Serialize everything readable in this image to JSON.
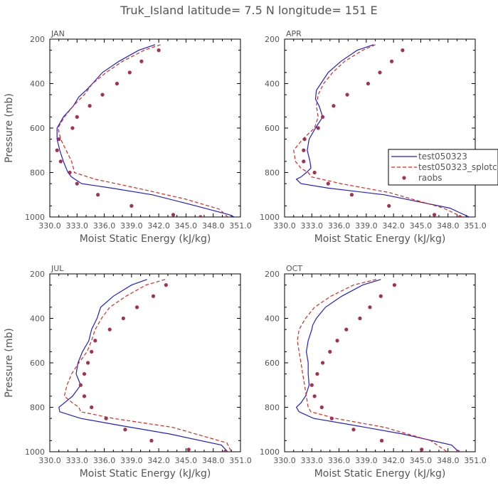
{
  "figure": {
    "title": "Truk_Island  latitude= 7.5 N longitude= 151 E"
  },
  "style": {
    "axis_color": "#000000",
    "label_color": "#555555",
    "model_color": "#1f1fd6",
    "splotch_color": "#e0261b",
    "raobs_color": "#a3324f"
  },
  "legend": {
    "placement": "right of APR panel",
    "entries": [
      "test050323",
      "test050323_splotch",
      "raobs"
    ]
  },
  "chart_data": [
    {
      "type": "line",
      "panel": "JAN",
      "xlabel": "Moist Static Energy (kJ/kg)",
      "ylabel": "Pressure (mb)",
      "xlim": [
        330.0,
        351.0
      ],
      "ylim": [
        200,
        1000
      ],
      "y_inverted": true,
      "xticks": [
        "330.0",
        "333.0",
        "336.0",
        "339.0",
        "342.0",
        "345.0",
        "348.0",
        "351.0"
      ],
      "yticks": [
        "200",
        "400",
        "600",
        "800",
        "1000"
      ],
      "series": [
        {
          "name": "test050323",
          "style": "solid",
          "x": [
            341.6,
            339.8,
            337.6,
            335.8,
            334.7,
            334.0,
            333.2,
            332.6,
            331.5,
            330.8,
            330.8,
            331.1,
            331.5,
            332.0,
            332.4,
            333.5,
            336.8,
            341.3,
            346.1,
            349.8,
            350.6
          ],
          "y": [
            225,
            250,
            300,
            350,
            400,
            430,
            460,
            500,
            550,
            600,
            650,
            700,
            750,
            800,
            820,
            850,
            870,
            900,
            950,
            990,
            1005
          ]
        },
        {
          "name": "test050323_splotch",
          "style": "dashed",
          "x": [
            342.2,
            340.4,
            338.0,
            336.2,
            334.7,
            333.8,
            332.6,
            331.6,
            330.9,
            331.2,
            331.8,
            332.4,
            332.6,
            332.7,
            335.0,
            339.6,
            345.0,
            348.7,
            349.6
          ],
          "y": [
            225,
            250,
            300,
            350,
            400,
            450,
            500,
            550,
            600,
            650,
            700,
            750,
            780,
            800,
            830,
            870,
            920,
            965,
            1000
          ]
        },
        {
          "name": "raobs",
          "style": "markers",
          "x": [
            342.0,
            340.1,
            338.8,
            337.4,
            335.8,
            334.4,
            333.0,
            332.5,
            331.0,
            330.8,
            331.2,
            332.2,
            333.0,
            335.3,
            339.0,
            343.6,
            346.6
          ],
          "y": [
            250,
            300,
            350,
            400,
            450,
            500,
            550,
            600,
            650,
            700,
            750,
            800,
            850,
            900,
            950,
            990,
            1000
          ]
        }
      ]
    },
    {
      "type": "line",
      "panel": "APR",
      "xlabel": "Moist Static Energy (kJ/kg)",
      "ylabel": "",
      "xlim": [
        330.0,
        351.0
      ],
      "ylim": [
        200,
        1000
      ],
      "y_inverted": true,
      "xticks": [
        "330.0",
        "333.0",
        "336.0",
        "339.0",
        "342.0",
        "345.0",
        "348.0",
        "351.0"
      ],
      "yticks": [
        "200",
        "400",
        "600",
        "800",
        "1000"
      ],
      "series": [
        {
          "name": "test050323",
          "style": "solid",
          "x": [
            339.8,
            338.0,
            336.2,
            334.8,
            334.0,
            333.5,
            333.4,
            333.8,
            334.2,
            333.4,
            332.7,
            332.5,
            332.8,
            332.9,
            332.4,
            331.8,
            331.3,
            331.8,
            334.8,
            341.0,
            348.2,
            350.6
          ],
          "y": [
            225,
            250,
            300,
            350,
            400,
            430,
            470,
            500,
            550,
            600,
            650,
            700,
            750,
            780,
            800,
            820,
            830,
            850,
            870,
            900,
            960,
            1005
          ]
        },
        {
          "name": "test050323_splotch",
          "style": "dashed",
          "x": [
            340.0,
            338.6,
            336.6,
            335.3,
            334.3,
            333.7,
            333.5,
            333.7,
            333.3,
            332.0,
            331.0,
            331.2,
            331.8,
            332.6,
            333.0,
            336.2,
            341.5,
            347.5,
            349.6
          ],
          "y": [
            225,
            250,
            300,
            350,
            400,
            450,
            500,
            550,
            600,
            650,
            700,
            750,
            780,
            800,
            820,
            850,
            890,
            960,
            1000
          ]
        },
        {
          "name": "raobs",
          "style": "markers",
          "x": [
            343.0,
            341.8,
            340.5,
            339.2,
            336.9,
            335.4,
            334.2,
            333.7,
            332.2,
            332.1,
            332.1,
            333.3,
            334.8,
            337.4,
            341.5,
            346.5,
            349.3
          ],
          "y": [
            250,
            300,
            350,
            400,
            450,
            500,
            550,
            600,
            650,
            700,
            750,
            800,
            850,
            900,
            950,
            990,
            1000
          ]
        }
      ]
    },
    {
      "type": "line",
      "panel": "JUL",
      "xlabel": "Moist Static Energy (kJ/kg)",
      "ylabel": "Pressure (mb)",
      "xlim": [
        330.0,
        351.0
      ],
      "ylim": [
        200,
        1000
      ],
      "y_inverted": true,
      "xticks": [
        "330.0",
        "333.0",
        "336.0",
        "339.0",
        "342.0",
        "345.0",
        "348.0",
        "351.0"
      ],
      "yticks": [
        "200",
        "400",
        "600",
        "800",
        "1000"
      ],
      "series": [
        {
          "name": "test050323",
          "style": "solid",
          "x": [
            340.7,
            339.0,
            337.0,
            335.6,
            335.2,
            334.6,
            334.3,
            333.6,
            333.1,
            332.9,
            333.4,
            332.5,
            331.6,
            331.0,
            331.1,
            333.4,
            337.5,
            343.2,
            348.9,
            349.7
          ],
          "y": [
            225,
            250,
            300,
            350,
            400,
            450,
            500,
            550,
            600,
            650,
            700,
            750,
            780,
            800,
            820,
            850,
            880,
            920,
            970,
            1005
          ]
        },
        {
          "name": "test050323_splotch",
          "style": "dashed",
          "x": [
            342.7,
            340.6,
            338.4,
            336.6,
            335.7,
            335.0,
            334.6,
            334.1,
            333.2,
            332.4,
            331.9,
            331.6,
            332.5,
            333.2,
            333.4,
            337.0,
            343.5,
            349.5,
            350.0
          ],
          "y": [
            225,
            250,
            300,
            350,
            400,
            450,
            500,
            550,
            600,
            650,
            700,
            750,
            780,
            800,
            820,
            850,
            890,
            960,
            1000
          ]
        },
        {
          "name": "raobs",
          "style": "markers",
          "x": [
            342.8,
            341.4,
            339.6,
            338.1,
            336.6,
            335.0,
            334.6,
            334.2,
            333.8,
            333.4,
            333.8,
            334.6,
            336.2,
            338.3,
            341.2,
            345.3,
            349.3
          ],
          "y": [
            250,
            300,
            350,
            400,
            450,
            500,
            550,
            600,
            650,
            700,
            750,
            800,
            850,
            900,
            950,
            990,
            1000
          ]
        }
      ]
    },
    {
      "type": "line",
      "panel": "OCT",
      "xlabel": "Moist Static Energy (kJ/kg)",
      "ylabel": "",
      "xlim": [
        330.0,
        351.0
      ],
      "ylim": [
        200,
        1000
      ],
      "y_inverted": true,
      "xticks": [
        "330.0",
        "333.0",
        "336.0",
        "339.0",
        "342.0",
        "345.0",
        "348.0",
        "351.0"
      ],
      "yticks": [
        "200",
        "400",
        "600",
        "800",
        "1000"
      ],
      "series": [
        {
          "name": "test050323",
          "style": "solid",
          "x": [
            340.6,
            338.6,
            336.3,
            334.5,
            333.5,
            333.1,
            333.0,
            332.6,
            332.4,
            332.6,
            332.6,
            332.7,
            332.3,
            331.8,
            331.3,
            331.6,
            333.2,
            337.5,
            343.0,
            348.4,
            349.3
          ],
          "y": [
            225,
            250,
            300,
            350,
            400,
            430,
            450,
            500,
            550,
            600,
            650,
            700,
            750,
            780,
            800,
            820,
            850,
            880,
            920,
            970,
            1005
          ]
        },
        {
          "name": "test050323_splotch",
          "style": "dashed",
          "x": [
            340.1,
            337.6,
            335.1,
            333.3,
            332.3,
            331.6,
            331.4,
            331.6,
            331.8,
            332.0,
            332.2,
            332.4,
            332.6,
            332.9,
            335.6,
            341.0,
            346.1,
            347.9
          ],
          "y": [
            225,
            250,
            300,
            350,
            400,
            450,
            500,
            550,
            600,
            650,
            700,
            750,
            800,
            820,
            850,
            890,
            950,
            1000
          ]
        },
        {
          "name": "raobs",
          "style": "markers",
          "x": [
            342.1,
            340.6,
            339.4,
            338.3,
            336.8,
            335.8,
            335.0,
            334.2,
            333.6,
            333.0,
            333.3,
            334.1,
            335.2,
            337.6,
            340.7,
            345.1,
            349.1
          ],
          "y": [
            250,
            300,
            350,
            400,
            450,
            500,
            550,
            600,
            650,
            700,
            750,
            800,
            850,
            900,
            950,
            990,
            1000
          ]
        }
      ]
    }
  ]
}
